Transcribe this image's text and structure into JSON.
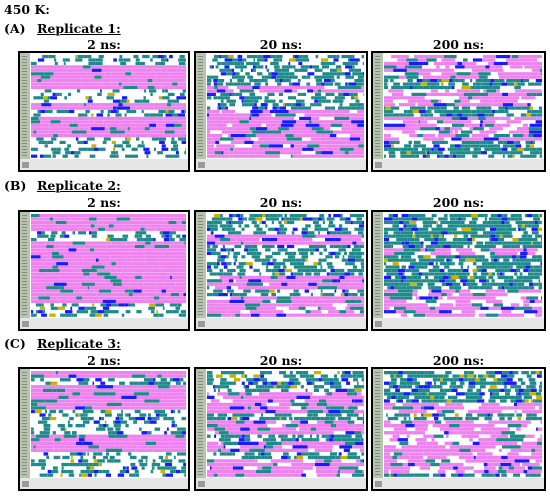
{
  "figure": {
    "temperature_label": "450 K:",
    "colors": {
      "helix": "#ee82ee",
      "turn": "#1f8a8a",
      "three_ten": "#1a1aff",
      "bridge": "#c8b400",
      "coil": "#ffffff",
      "axis_strip": "#b8c4b0"
    },
    "rows": [
      {
        "letter": "(A)",
        "replicate": "Replicate 1:",
        "panels": [
          {
            "time": "2 ns:"
          },
          {
            "time": "20 ns:"
          },
          {
            "time": "200 ns:"
          }
        ]
      },
      {
        "letter": "(B)",
        "replicate": "Replicate 2:",
        "panels": [
          {
            "time": "2 ns:"
          },
          {
            "time": "20 ns:"
          },
          {
            "time": "200 ns:"
          }
        ]
      },
      {
        "letter": "(C)",
        "replicate": "Replicate 3:",
        "panels": [
          {
            "time": "2 ns:"
          },
          {
            "time": "20 ns:"
          },
          {
            "time": "200 ns:"
          }
        ]
      }
    ]
  }
}
